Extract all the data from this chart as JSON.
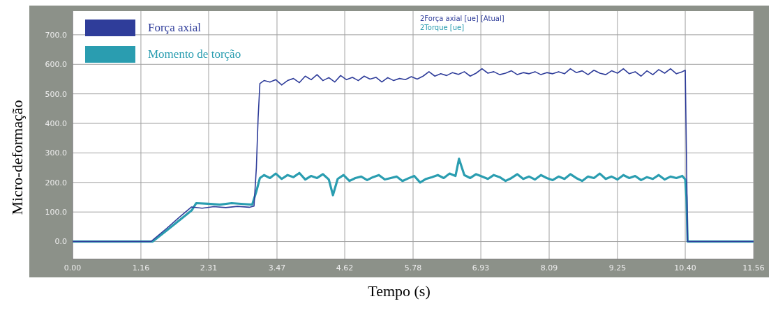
{
  "chart_data": {
    "type": "line",
    "xlabel": "Tempo (s)",
    "ylabel": "Micro-deformação",
    "xlim": [
      0,
      11.56
    ],
    "ylim": [
      -60,
      780
    ],
    "xticks": [
      {
        "value": 0,
        "label": "0.00"
      },
      1.16,
      2.31,
      3.47,
      4.62,
      5.78,
      6.93,
      8.09,
      9.25,
      {
        "value": 10.4,
        "label": "10.40"
      },
      11.56
    ],
    "yticks": [
      {
        "value": 0,
        "label": "0.0"
      },
      {
        "value": 100,
        "label": "100.0"
      },
      {
        "value": 200,
        "label": "200.0"
      },
      {
        "value": 300,
        "label": "300.0"
      },
      {
        "value": 400,
        "label": "400.0"
      },
      {
        "value": 500,
        "label": "500.0"
      },
      {
        "value": 600,
        "label": "600.0"
      },
      {
        "value": 700,
        "label": "700.0"
      }
    ],
    "grid": true,
    "legend": "top left",
    "marker": "none",
    "line_style": "solid",
    "annotations": [
      "2Força axial [ue] [Atual]",
      "2Torque [ue]"
    ],
    "series": [
      {
        "name": "Força axial",
        "color": "#2f3d9a",
        "x": [
          0,
          0.5,
          1.0,
          1.33,
          1.6,
          1.8,
          2.02,
          2.2,
          2.4,
          2.6,
          2.8,
          3.0,
          3.08,
          3.12,
          3.15,
          3.18,
          3.25,
          3.35,
          3.45,
          3.55,
          3.65,
          3.75,
          3.85,
          3.95,
          4.05,
          4.15,
          4.25,
          4.35,
          4.45,
          4.55,
          4.65,
          4.75,
          4.85,
          4.95,
          5.05,
          5.15,
          5.25,
          5.35,
          5.45,
          5.55,
          5.65,
          5.75,
          5.85,
          5.95,
          6.05,
          6.15,
          6.25,
          6.35,
          6.45,
          6.55,
          6.65,
          6.75,
          6.85,
          6.95,
          7.05,
          7.15,
          7.25,
          7.35,
          7.45,
          7.55,
          7.65,
          7.75,
          7.85,
          7.95,
          8.05,
          8.15,
          8.25,
          8.35,
          8.45,
          8.55,
          8.65,
          8.75,
          8.85,
          8.95,
          9.05,
          9.15,
          9.25,
          9.35,
          9.45,
          9.55,
          9.65,
          9.75,
          9.85,
          9.95,
          10.05,
          10.15,
          10.25,
          10.35,
          10.4,
          10.42,
          10.44,
          10.8,
          11.2,
          11.56
        ],
        "values": [
          0,
          0,
          0,
          0,
          45,
          80,
          117,
          113,
          118,
          115,
          119,
          116,
          120,
          250,
          420,
          535,
          545,
          540,
          548,
          530,
          545,
          552,
          538,
          560,
          548,
          565,
          545,
          555,
          540,
          562,
          548,
          556,
          545,
          560,
          550,
          556,
          540,
          555,
          545,
          552,
          548,
          558,
          550,
          560,
          575,
          560,
          568,
          562,
          572,
          566,
          575,
          560,
          570,
          585,
          570,
          575,
          565,
          570,
          578,
          565,
          572,
          568,
          575,
          565,
          572,
          568,
          575,
          568,
          585,
          572,
          578,
          565,
          580,
          570,
          565,
          578,
          570,
          585,
          568,
          575,
          560,
          578,
          565,
          582,
          570,
          585,
          568,
          575,
          580,
          300,
          0,
          0,
          0,
          0
        ]
      },
      {
        "name": "Momento de torção",
        "color": "#2a9db0",
        "x": [
          0,
          0.5,
          1.0,
          1.36,
          1.6,
          1.8,
          2.02,
          2.1,
          2.3,
          2.5,
          2.7,
          2.9,
          3.05,
          3.12,
          3.18,
          3.25,
          3.35,
          3.45,
          3.55,
          3.65,
          3.75,
          3.85,
          3.95,
          4.05,
          4.15,
          4.25,
          4.35,
          4.42,
          4.5,
          4.6,
          4.7,
          4.8,
          4.9,
          5.0,
          5.1,
          5.2,
          5.3,
          5.4,
          5.5,
          5.6,
          5.7,
          5.8,
          5.9,
          6.0,
          6.1,
          6.2,
          6.3,
          6.4,
          6.5,
          6.56,
          6.65,
          6.75,
          6.85,
          6.95,
          7.05,
          7.15,
          7.25,
          7.35,
          7.45,
          7.55,
          7.65,
          7.75,
          7.85,
          7.95,
          8.05,
          8.15,
          8.25,
          8.35,
          8.45,
          8.55,
          8.65,
          8.75,
          8.85,
          8.95,
          9.05,
          9.15,
          9.25,
          9.35,
          9.45,
          9.55,
          9.65,
          9.75,
          9.85,
          9.95,
          10.05,
          10.15,
          10.25,
          10.35,
          10.4,
          10.42,
          10.44,
          10.8,
          11.2,
          11.56
        ],
        "values": [
          0,
          0,
          0,
          0,
          38,
          70,
          105,
          130,
          128,
          125,
          130,
          127,
          125,
          170,
          215,
          225,
          215,
          230,
          212,
          225,
          218,
          232,
          210,
          222,
          215,
          228,
          210,
          157,
          212,
          225,
          205,
          215,
          220,
          208,
          218,
          225,
          210,
          215,
          220,
          205,
          214,
          222,
          200,
          212,
          218,
          225,
          215,
          230,
          222,
          280,
          225,
          215,
          228,
          220,
          212,
          225,
          218,
          205,
          215,
          228,
          212,
          220,
          210,
          225,
          215,
          208,
          220,
          212,
          228,
          215,
          205,
          220,
          215,
          230,
          212,
          220,
          210,
          225,
          215,
          222,
          208,
          218,
          212,
          225,
          210,
          220,
          215,
          222,
          210,
          150,
          0,
          0,
          0,
          0
        ]
      }
    ]
  }
}
